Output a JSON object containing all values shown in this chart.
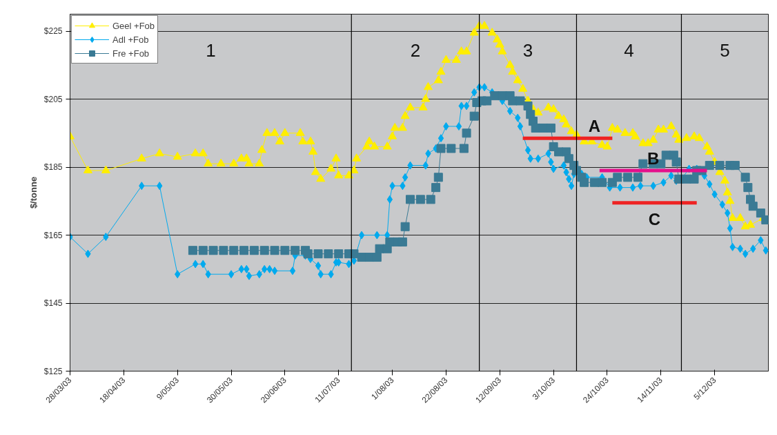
{
  "chart_data": {
    "type": "line",
    "ylabel": "$/tonne",
    "xlim": [
      "2003-03-28",
      "2003-12-26"
    ],
    "ylim": [
      125,
      230
    ],
    "xticks": [
      {
        "value": "2003-03-28",
        "label": "28/03/03"
      },
      {
        "value": "2003-04-18",
        "label": "18/04/03"
      },
      {
        "value": "2003-05-09",
        "label": "9/05/03"
      },
      {
        "value": "2003-05-30",
        "label": "30/05/03"
      },
      {
        "value": "2003-06-20",
        "label": "20/06/03"
      },
      {
        "value": "2003-07-11",
        "label": "11/07/03"
      },
      {
        "value": "2003-08-01",
        "label": "1/08/03"
      },
      {
        "value": "2003-08-22",
        "label": "22/08/03"
      },
      {
        "value": "2003-09-12",
        "label": "12/09/03"
      },
      {
        "value": "2003-10-03",
        "label": "3/10/03"
      },
      {
        "value": "2003-10-24",
        "label": "24/10/03"
      },
      {
        "value": "2003-11-14",
        "label": "14/11/03"
      },
      {
        "value": "2003-12-05",
        "label": "5/12/03"
      }
    ],
    "yticks": [
      {
        "value": 125,
        "label": "$125"
      },
      {
        "value": 145,
        "label": "$145"
      },
      {
        "value": 165,
        "label": "$165"
      },
      {
        "value": 185,
        "label": "$185"
      },
      {
        "value": 205,
        "label": "$205"
      },
      {
        "value": 225,
        "label": "$225"
      }
    ],
    "grid": "y",
    "legend": "top left",
    "series": [
      {
        "name": "Geel +Fob",
        "color": "#ffee00",
        "marker": "triangle",
        "x": [
          "2003-03-28",
          "2003-04-04",
          "2003-04-11",
          "2003-04-25",
          "2003-05-02",
          "2003-05-09",
          "2003-05-16",
          "2003-05-19",
          "2003-05-21",
          "2003-05-26",
          "2003-05-31",
          "2003-06-03",
          "2003-06-05",
          "2003-06-06",
          "2003-06-10",
          "2003-06-11",
          "2003-06-13",
          "2003-06-16",
          "2003-06-18",
          "2003-06-20",
          "2003-06-26",
          "2003-06-27",
          "2003-06-30",
          "2003-07-01",
          "2003-07-02",
          "2003-07-04",
          "2003-07-08",
          "2003-07-10",
          "2003-07-11",
          "2003-07-15",
          "2003-07-17",
          "2003-07-18",
          "2003-07-22",
          "2003-07-23",
          "2003-07-25",
          "2003-07-30",
          "2003-08-01",
          "2003-08-02",
          "2003-08-05",
          "2003-08-06",
          "2003-08-08",
          "2003-08-13",
          "2003-08-14",
          "2003-08-15",
          "2003-08-19",
          "2003-08-20",
          "2003-08-22",
          "2003-08-26",
          "2003-08-28",
          "2003-08-30",
          "2003-09-02",
          "2003-09-04",
          "2003-09-06",
          "2003-09-09",
          "2003-09-11",
          "2003-09-12",
          "2003-09-13",
          "2003-09-16",
          "2003-09-17",
          "2003-09-19",
          "2003-09-21",
          "2003-09-23",
          "2003-09-25",
          "2003-09-27",
          "2003-10-01",
          "2003-10-03",
          "2003-10-05",
          "2003-10-07",
          "2003-10-08",
          "2003-10-10",
          "2003-10-12",
          "2003-10-15",
          "2003-10-18",
          "2003-10-22",
          "2003-10-24",
          "2003-10-26",
          "2003-10-28",
          "2003-10-31",
          "2003-11-03",
          "2003-11-04",
          "2003-11-07",
          "2003-11-09",
          "2003-11-11",
          "2003-11-13",
          "2003-11-15",
          "2003-11-18",
          "2003-11-20",
          "2003-11-21",
          "2003-11-24",
          "2003-11-27",
          "2003-11-29",
          "2003-12-02",
          "2003-12-03",
          "2003-12-05",
          "2003-12-07",
          "2003-12-09",
          "2003-12-10",
          "2003-12-11",
          "2003-12-12",
          "2003-12-15",
          "2003-12-17",
          "2003-12-19",
          "2003-12-24"
        ],
        "values": [
          194,
          184,
          184,
          187.5,
          189,
          188,
          189,
          189,
          186,
          186,
          186,
          187.5,
          187.5,
          186,
          186,
          190,
          195,
          195,
          192.5,
          195,
          195,
          192.5,
          192.5,
          189.5,
          183.5,
          181.5,
          184.5,
          187.5,
          182.5,
          182.5,
          184,
          187.5,
          191,
          192.5,
          191,
          191,
          194,
          196.5,
          196.5,
          200,
          202.5,
          202.5,
          205,
          208.5,
          210.5,
          213,
          216.5,
          216.5,
          219,
          219,
          224.5,
          226.5,
          226.5,
          224.5,
          222.5,
          221,
          219,
          215,
          213,
          210.5,
          208,
          204.5,
          202,
          201,
          202.5,
          202,
          200,
          199,
          197.5,
          195.5,
          194.5,
          192.5,
          192.5,
          191.5,
          191,
          196.5,
          196,
          195,
          195,
          194,
          192,
          192,
          193,
          196,
          196,
          197,
          194.5,
          193,
          193.5,
          194,
          193.5,
          191,
          189.5,
          186.5,
          183.5,
          181,
          177.5,
          175,
          170,
          170,
          167.5,
          168,
          170
        ]
      },
      {
        "name": "Adl +Fob",
        "color": "#00aaee",
        "marker": "diamond",
        "x": [
          "2003-03-28",
          "2003-04-04",
          "2003-04-11",
          "2003-04-25",
          "2003-05-02",
          "2003-05-09",
          "2003-05-16",
          "2003-05-19",
          "2003-05-21",
          "2003-05-30",
          "2003-06-03",
          "2003-06-05",
          "2003-06-06",
          "2003-06-10",
          "2003-06-12",
          "2003-06-14",
          "2003-06-16",
          "2003-06-23",
          "2003-06-24",
          "2003-06-28",
          "2003-06-30",
          "2003-07-03",
          "2003-07-04",
          "2003-07-08",
          "2003-07-10",
          "2003-07-11",
          "2003-07-15",
          "2003-07-17",
          "2003-07-20",
          "2003-07-26",
          "2003-07-30",
          "2003-07-31",
          "2003-08-01",
          "2003-08-05",
          "2003-08-06",
          "2003-08-08",
          "2003-08-14",
          "2003-08-15",
          "2003-08-18",
          "2003-08-20",
          "2003-08-22",
          "2003-08-27",
          "2003-08-28",
          "2003-08-30",
          "2003-09-02",
          "2003-09-04",
          "2003-09-06",
          "2003-09-09",
          "2003-09-13",
          "2003-09-16",
          "2003-09-19",
          "2003-09-20",
          "2003-09-23",
          "2003-09-24",
          "2003-09-27",
          "2003-10-01",
          "2003-10-02",
          "2003-10-03",
          "2003-10-07",
          "2003-10-08",
          "2003-10-09",
          "2003-10-10",
          "2003-10-11",
          "2003-10-14",
          "2003-10-16",
          "2003-10-22",
          "2003-10-25",
          "2003-10-29",
          "2003-11-03",
          "2003-11-06",
          "2003-11-11",
          "2003-11-15",
          "2003-11-18",
          "2003-11-20",
          "2003-11-22",
          "2003-11-25",
          "2003-11-28",
          "2003-12-01",
          "2003-12-03",
          "2003-12-05",
          "2003-12-08",
          "2003-12-10",
          "2003-12-11",
          "2003-12-12",
          "2003-12-15",
          "2003-12-17",
          "2003-12-20",
          "2003-12-23",
          "2003-12-25"
        ],
        "values": [
          164.5,
          159.5,
          164.5,
          179.5,
          179.5,
          153.5,
          156.5,
          156.5,
          153.5,
          153.5,
          155,
          155,
          153,
          153.5,
          155,
          155,
          154.5,
          154.5,
          159,
          159,
          158,
          156,
          153.5,
          153.5,
          157,
          157,
          156.5,
          157.5,
          165,
          165,
          165,
          175.5,
          179.5,
          179.5,
          182,
          185.5,
          185.5,
          189,
          190.5,
          193.5,
          197,
          197,
          203,
          203,
          207,
          208.5,
          208.5,
          207,
          204.5,
          201.5,
          199.5,
          197,
          190,
          187.5,
          187.5,
          189,
          186.5,
          184.5,
          185.5,
          183.5,
          181.5,
          179.5,
          183,
          183,
          182,
          182,
          179,
          179,
          179,
          179.5,
          179.5,
          180.5,
          182.5,
          181,
          181.5,
          184.5,
          184.5,
          182.5,
          180,
          177,
          174,
          171.5,
          167,
          161.5,
          161,
          159.5,
          161,
          163.5,
          160.5
        ]
      },
      {
        "name": "Fre +Fob",
        "color": "#3a7a94",
        "marker": "square",
        "x": [
          "2003-05-15",
          "2003-05-19",
          "2003-05-23",
          "2003-05-27",
          "2003-05-31",
          "2003-06-04",
          "2003-06-08",
          "2003-06-12",
          "2003-06-16",
          "2003-06-20",
          "2003-06-24",
          "2003-06-28",
          "2003-06-29",
          "2003-07-03",
          "2003-07-07",
          "2003-07-11",
          "2003-07-15",
          "2003-07-17",
          "2003-07-20",
          "2003-07-23",
          "2003-07-26",
          "2003-07-27",
          "2003-07-30",
          "2003-07-31",
          "2003-08-03",
          "2003-08-05",
          "2003-08-06",
          "2003-08-08",
          "2003-08-12",
          "2003-08-16",
          "2003-08-18",
          "2003-08-19",
          "2003-08-20",
          "2003-08-24",
          "2003-08-29",
          "2003-08-30",
          "2003-09-02",
          "2003-09-03",
          "2003-09-05",
          "2003-09-07",
          "2003-09-10",
          "2003-09-13",
          "2003-09-16",
          "2003-09-17",
          "2003-09-20",
          "2003-09-23",
          "2003-09-24",
          "2003-09-25",
          "2003-09-26",
          "2003-09-29",
          "2003-10-02",
          "2003-10-03",
          "2003-10-05",
          "2003-10-08",
          "2003-10-09",
          "2003-10-11",
          "2003-10-12",
          "2003-10-14",
          "2003-10-15",
          "2003-10-19",
          "2003-10-22",
          "2003-10-26",
          "2003-10-28",
          "2003-11-01",
          "2003-11-05",
          "2003-11-07",
          "2003-11-11",
          "2003-11-14",
          "2003-11-16",
          "2003-11-19",
          "2003-11-20",
          "2003-11-21",
          "2003-11-24",
          "2003-11-27",
          "2003-11-28",
          "2003-11-30",
          "2003-12-03",
          "2003-12-07",
          "2003-12-11",
          "2003-12-13",
          "2003-12-17",
          "2003-12-18",
          "2003-12-19",
          "2003-12-20",
          "2003-12-23",
          "2003-12-25"
        ],
        "values": [
          160.5,
          160.5,
          160.5,
          160.5,
          160.5,
          160.5,
          160.5,
          160.5,
          160.5,
          160.5,
          160.5,
          160.5,
          159.5,
          159.5,
          159.5,
          159.5,
          159.5,
          159.5,
          158.5,
          158.5,
          158.5,
          161,
          161,
          163,
          163,
          163,
          167.5,
          175.5,
          175.5,
          175.5,
          179,
          182,
          190.5,
          190.5,
          190.5,
          195,
          200,
          204,
          204.5,
          204.5,
          206,
          206,
          206,
          204.5,
          204.5,
          203,
          200.5,
          198.5,
          196.5,
          196.5,
          196.5,
          191,
          189.5,
          189.5,
          187.5,
          185.5,
          184,
          182,
          180.5,
          180.5,
          180.5,
          180.5,
          182,
          182,
          182,
          186,
          186,
          186,
          188.5,
          188.5,
          186.5,
          181.5,
          181.5,
          181.5,
          184,
          184,
          185.5,
          185.5,
          185.5,
          185.5,
          182,
          179,
          175.5,
          173.5,
          171.5,
          169.5
        ]
      },
      {
        "name": "A",
        "color": "#ee2222",
        "marker": "none",
        "x": [
          "2003-09-21",
          "2003-10-26"
        ],
        "values": [
          193.5,
          193.5
        ]
      },
      {
        "name": "B",
        "color": "#e4108c",
        "marker": "none",
        "x": [
          "2003-10-21",
          "2003-12-02"
        ],
        "values": [
          184,
          184
        ]
      },
      {
        "name": "C",
        "color": "#ee2222",
        "marker": "none",
        "x": [
          "2003-10-26",
          "2003-11-28"
        ],
        "values": [
          174.5,
          174.5
        ]
      }
    ],
    "ref_lines": [
      {
        "axis": "x",
        "value": "2003-07-16",
        "color": "#000000"
      },
      {
        "axis": "x",
        "value": "2003-09-04",
        "color": "#000000"
      },
      {
        "axis": "x",
        "value": "2003-10-12",
        "color": "#000000"
      },
      {
        "axis": "x",
        "value": "2003-11-22",
        "color": "#000000"
      }
    ],
    "annotations": [
      "1",
      "2",
      "3",
      "4",
      "5"
    ]
  }
}
